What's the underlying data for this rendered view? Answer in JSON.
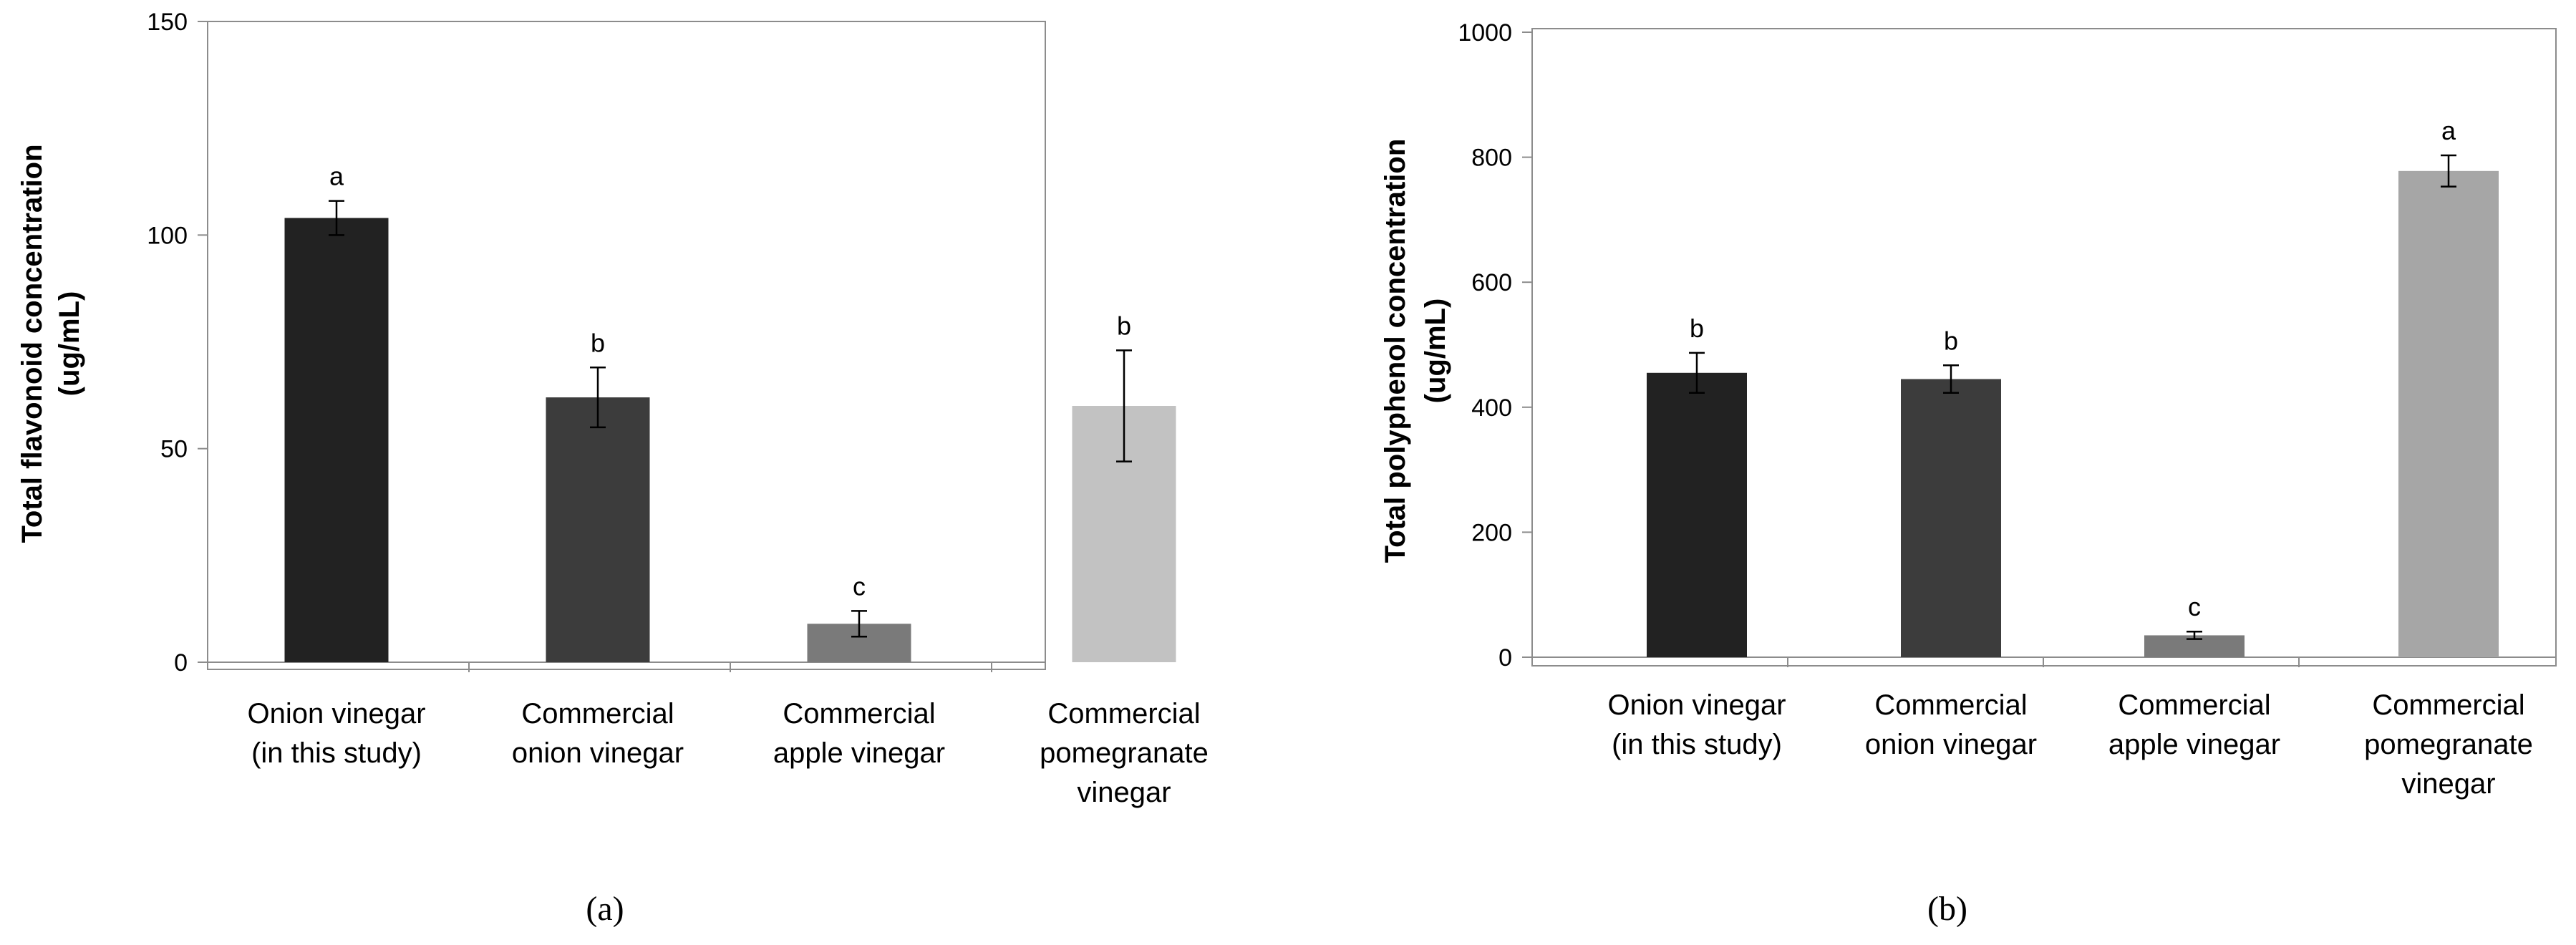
{
  "chart_data": [
    {
      "type": "bar",
      "panel_label": "(a)",
      "title": "",
      "xlabel": "",
      "ylabel": [
        "Total flavonoid concentration",
        "(ug/mL)"
      ],
      "ylim": [
        0,
        150
      ],
      "yticks": [
        0,
        50,
        100,
        150
      ],
      "grid": false,
      "categories": [
        [
          "Onion vinegar",
          "(in this study)"
        ],
        [
          "Commercial",
          "onion vinegar"
        ],
        [
          "Commercial",
          "apple vinegar"
        ],
        [
          "Commercial",
          "pomegranate",
          "vinegar"
        ]
      ],
      "values": [
        104,
        62,
        9,
        60
      ],
      "errors": [
        4,
        7,
        3,
        13
      ],
      "significance": [
        "a",
        "b",
        "c",
        "b"
      ],
      "colors": [
        "#222222",
        "#3c3c3c",
        "#7a7a7a",
        "#c2c2c2"
      ]
    },
    {
      "type": "bar",
      "panel_label": "(b)",
      "title": "",
      "xlabel": "",
      "ylabel": [
        "Total polyphenol concentration",
        "(ug/mL)"
      ],
      "ylim": [
        0,
        1000
      ],
      "yticks": [
        0,
        200,
        400,
        600,
        800,
        1000
      ],
      "grid": false,
      "categories": [
        [
          "Onion vinegar",
          "(in this study)"
        ],
        [
          "Commercial",
          "onion vinegar"
        ],
        [
          "Commercial",
          "apple vinegar"
        ],
        [
          "Commercial",
          "pomegranate",
          "vinegar"
        ]
      ],
      "values": [
        455,
        445,
        35,
        778
      ],
      "errors": [
        32,
        22,
        6,
        25
      ],
      "significance": [
        "b",
        "b",
        "c",
        "a"
      ],
      "colors": [
        "#222222",
        "#3c3c3c",
        "#7a7a7a",
        "#a6a6a6"
      ]
    }
  ]
}
